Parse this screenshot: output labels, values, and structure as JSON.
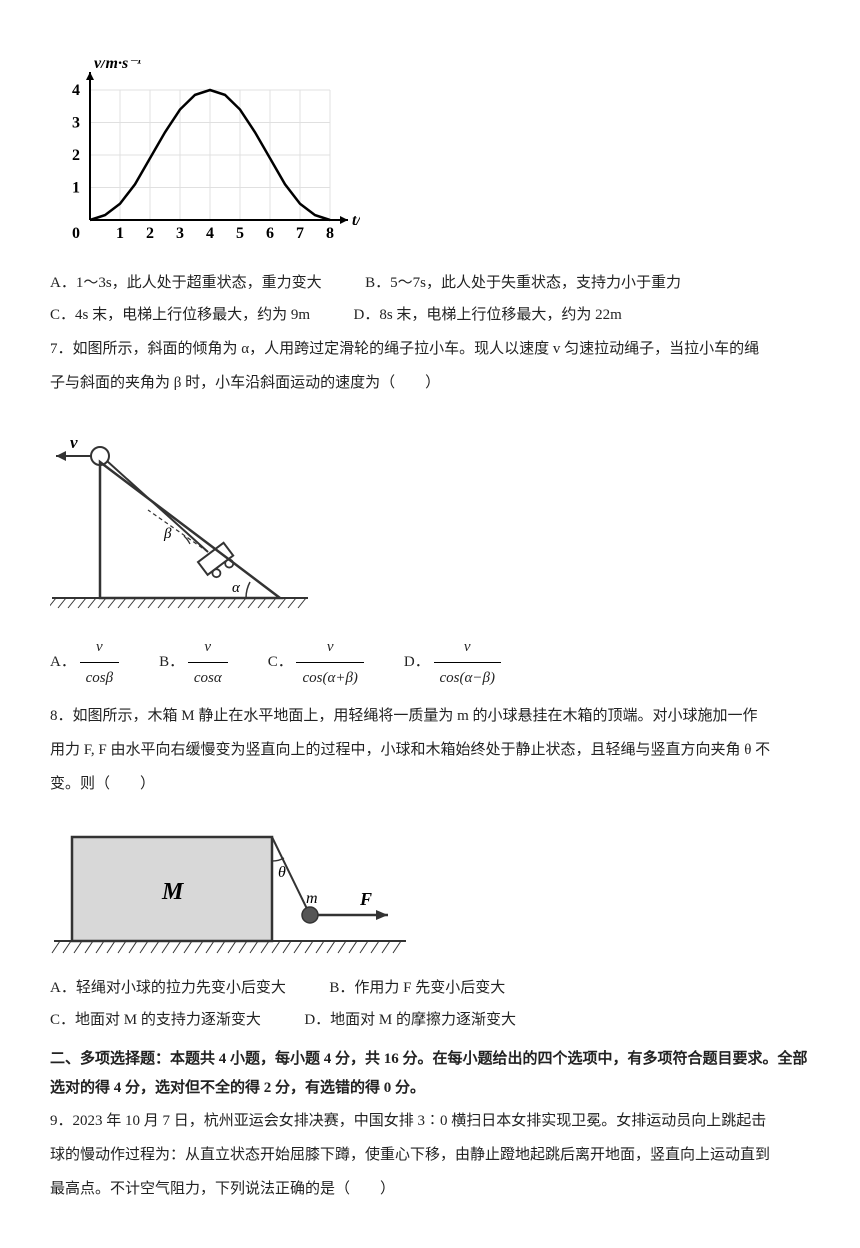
{
  "chart": {
    "type": "line",
    "ylabel": "v/m·s⁻¹",
    "xlabel": "t/s",
    "xlim": [
      0,
      8
    ],
    "ylim": [
      0,
      4
    ],
    "xtick_labels": [
      "1",
      "2",
      "3",
      "4",
      "5",
      "6",
      "7",
      "8"
    ],
    "ytick_labels": [
      "1",
      "2",
      "3",
      "4"
    ],
    "xtick_step": 1,
    "ytick_step": 1,
    "curve_points": [
      [
        0,
        0
      ],
      [
        0.5,
        0.15
      ],
      [
        1,
        0.5
      ],
      [
        1.5,
        1.1
      ],
      [
        2,
        1.9
      ],
      [
        2.5,
        2.7
      ],
      [
        3,
        3.4
      ],
      [
        3.5,
        3.85
      ],
      [
        4,
        4
      ],
      [
        4.5,
        3.85
      ],
      [
        5,
        3.4
      ],
      [
        5.5,
        2.7
      ],
      [
        6,
        1.9
      ],
      [
        6.5,
        1.1
      ],
      [
        7,
        0.5
      ],
      [
        7.5,
        0.15
      ],
      [
        8,
        0
      ]
    ],
    "grid_color": "#e0e0e0",
    "axis_color": "#000000",
    "curve_color": "#000000",
    "background_color": "#ffffff",
    "label_fontsize": 16,
    "tick_fontsize": 16
  },
  "q6": {
    "optA": "A．1～3s，此人处于超重状态，重力变大",
    "optB": "B．5～7s，此人处于失重状态，支持力小于重力",
    "optC": "C．4s 末，电梯上行位移最大，约为 9m",
    "optD": "D．8s 末，电梯上行位移最大，约为 22m"
  },
  "q7": {
    "text1": "7．如图所示，斜面的倾角为 α，人用跨过定滑轮的绳子拉小车。现人以速度 v 匀速拉动绳子，当拉小车的绳",
    "text2": "子与斜面的夹角为 β 时，小车沿斜面运动的速度为（　　）",
    "optA_prefix": "A．",
    "optA_num": "v",
    "optA_den": "cosβ",
    "optB_prefix": "B．",
    "optB_num": "v",
    "optB_den": "cosα",
    "optC_prefix": "C．",
    "optC_num": "v",
    "optC_den": "cos(α+β)",
    "optD_prefix": "D．",
    "optD_num": "v",
    "optD_den": "cos(α−β)"
  },
  "q7_diagram": {
    "v_label": "v",
    "beta_label": "β",
    "alpha_label": "α",
    "colors": {
      "stroke": "#333333",
      "hatch": "#333333"
    }
  },
  "q8": {
    "text1": "8．如图所示，木箱 M 静止在水平地面上，用轻绳将一质量为 m 的小球悬挂在木箱的顶端。对小球施加一作",
    "text2": "用力 F, F 由水平向右缓慢变为竖直向上的过程中，小球和木箱始终处于静止状态，且轻绳与竖直方向夹角 θ 不",
    "text3": "变。则（　　）",
    "optA": "A．轻绳对小球的拉力先变小后变大",
    "optB": "B．作用力 F 先变小后变大",
    "optC": "C．地面对 M 的支持力逐渐变大",
    "optD": "D．地面对 M 的摩擦力逐渐变大"
  },
  "q8_diagram": {
    "M_label": "M",
    "theta_label": "θ",
    "m_label": "m",
    "F_label": "F",
    "box_fill": "#d8d8d8",
    "stroke": "#333333"
  },
  "section2": {
    "heading": "二、多项选择题：本题共 4 小题，每小题 4 分，共 16 分。在每小题给出的四个选项中，有多项符合题目要求。全部选对的得 4 分，选对但不全的得 2 分，有选错的得 0 分。"
  },
  "q9": {
    "text1": "9．2023 年 10 月 7 日，杭州亚运会女排决赛，中国女排 3∶0 横扫日本女排实现卫冕。女排运动员向上跳起击",
    "text2": "球的慢动作过程为：从直立状态开始屈膝下蹲，使重心下移，由静止蹬地起跳后离开地面，竖直向上运动直到",
    "text3": "最高点。不计空气阻力，下列说法正确的是（　　）"
  }
}
